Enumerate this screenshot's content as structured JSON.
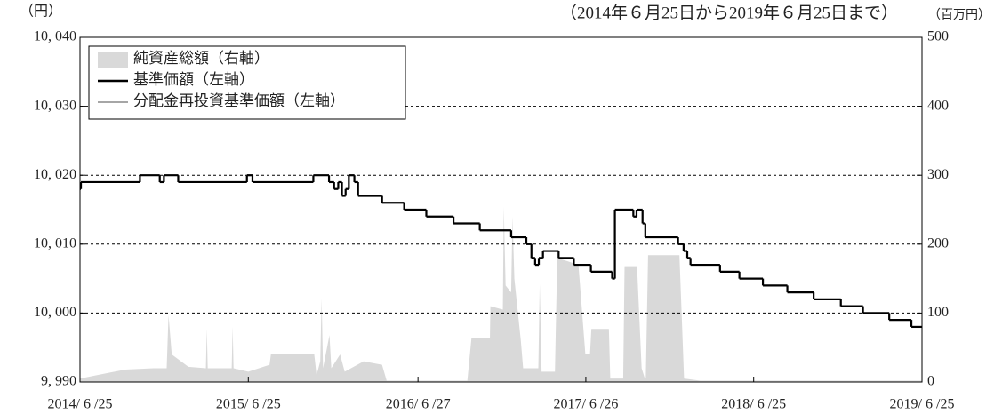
{
  "chart_data": {
    "type": "line",
    "y_label": "（円）",
    "subtitle": "（2014年６月25日から2019年６月25日まで）",
    "y2_label": "（百万円）",
    "xlim": [
      "2014/06/25",
      "2019/06/25"
    ],
    "xticks": [
      {
        "value": "2014/06/25",
        "label": "2014/ 6 /25"
      },
      {
        "value": "2015/06/25",
        "label": "2015/ 6 /25"
      },
      {
        "value": "2016/06/27",
        "label": "2016/ 6 /27"
      },
      {
        "value": "2017/06/26",
        "label": "2017/ 6 /26"
      },
      {
        "value": "2018/06/25",
        "label": "2018/ 6 /25"
      },
      {
        "value": "2019/06/25",
        "label": "2019/ 6 /25"
      }
    ],
    "ylim": [
      9990,
      10040
    ],
    "yticks": [
      {
        "value": 9990,
        "label": "9, 990"
      },
      {
        "value": 10000,
        "label": "10, 000"
      },
      {
        "value": 10010,
        "label": "10, 010"
      },
      {
        "value": 10020,
        "label": "10, 020"
      },
      {
        "value": 10030,
        "label": "10, 030"
      },
      {
        "value": 10040,
        "label": "10, 040"
      }
    ],
    "y2lim": [
      0,
      500
    ],
    "y2ticks": [
      0,
      100,
      200,
      300,
      400,
      500
    ],
    "grid": true,
    "legend": "upper left",
    "series": [
      {
        "name": "純資産総額（右軸）",
        "kind": "area",
        "axis": "y2",
        "color": "#d9d9d9",
        "x": [
          "2014/06/25",
          "2014/08/01",
          "2014/10/01",
          "2014/12/01",
          "2014/12/30",
          "2015/01/03",
          "2015/01/10",
          "2015/02/15",
          "2015/03/25",
          "2015/03/27",
          "2015/03/29",
          "2015/05/20",
          "2015/05/22",
          "2015/05/24",
          "2015/06/25",
          "2015/08/10",
          "2015/08/13",
          "2015/11/15",
          "2015/11/20",
          "2015/11/28",
          "2015/12/01",
          "2015/12/04",
          "2015/12/18",
          "2015/12/22",
          "2016/01/10",
          "2016/01/20",
          "2016/03/01",
          "2016/04/10",
          "2016/04/20",
          "2016/10/12",
          "2016/10/21",
          "2016/11/30",
          "2016/12/01",
          "2016/12/28",
          "2016/12/30",
          "2017/01/03",
          "2017/01/15",
          "2017/01/18",
          "2017/01/22",
          "2017/02/05",
          "2017/02/10",
          "2017/03/15",
          "2017/03/18",
          "2017/03/22",
          "2017/04/20",
          "2017/04/25",
          "2017/06/10",
          "2017/06/25",
          "2017/07/05",
          "2017/07/08",
          "2017/08/15",
          "2017/08/18",
          "2017/09/15",
          "2017/09/18",
          "2017/10/15",
          "2017/10/25",
          "2017/11/01",
          "2017/11/03",
          "2017/11/08",
          "2018/01/15",
          "2018/01/25",
          "2018/03/01",
          "2019/06/25"
        ],
        "values": [
          5,
          10,
          18,
          20,
          20,
          97,
          40,
          22,
          20,
          77,
          20,
          20,
          80,
          20,
          15,
          25,
          40,
          40,
          10,
          30,
          121,
          20,
          68,
          20,
          40,
          15,
          30,
          25,
          2,
          2,
          64,
          64,
          110,
          105,
          254,
          140,
          130,
          240,
          150,
          60,
          20,
          20,
          142,
          15,
          15,
          180,
          170,
          40,
          40,
          77,
          77,
          5,
          5,
          168,
          168,
          20,
          5,
          5,
          184,
          184,
          5,
          2,
          2
        ]
      },
      {
        "name": "基準価額（左軸）",
        "kind": "step",
        "color": "#000000",
        "x": [
          "2014/06/25",
          "2014/06/27",
          "2014/11/02",
          "2014/12/15",
          "2014/12/24",
          "2015/01/24",
          "2015/06/22",
          "2015/07/04",
          "2015/11/13",
          "2015/12/17",
          "2015/12/28",
          "2016/01/06",
          "2016/01/14",
          "2016/01/22",
          "2016/01/29",
          "2016/02/10",
          "2016/02/18",
          "2016/04/10",
          "2016/05/28",
          "2016/07/15",
          "2016/09/12",
          "2016/11/08",
          "2017/01/15",
          "2017/02/17",
          "2017/02/28",
          "2017/03/08",
          "2017/03/16",
          "2017/03/25",
          "2017/04/28",
          "2017/05/31",
          "2017/07/07",
          "2017/08/22",
          "2017/08/28",
          "2017/10/07",
          "2017/10/14",
          "2017/10/27",
          "2017/11/02",
          "2018/01/12",
          "2018/01/24",
          "2018/02/01",
          "2018/02/08",
          "2018/04/13",
          "2018/05/25",
          "2018/07/15",
          "2018/09/06",
          "2018/11/02",
          "2018/12/31",
          "2019/02/17",
          "2019/04/15",
          "2019/06/02"
        ],
        "values": [
          10018,
          10019,
          10020,
          10019,
          10020,
          10019,
          10020,
          10019,
          10020,
          10019,
          10018,
          10019,
          10017,
          10018,
          10020,
          10019,
          10017,
          10016,
          10015,
          10014,
          10013,
          10012,
          10011,
          10010,
          10008,
          10007,
          10008,
          10009,
          10008,
          10007,
          10006,
          10005,
          10015,
          10014,
          10015,
          10013,
          10011,
          10010,
          10009,
          10008,
          10007,
          10006,
          10005,
          10004,
          10003,
          10002,
          10001,
          10000,
          9999,
          9998
        ]
      },
      {
        "name": "分配金再投資基準価額（左軸）",
        "kind": "step",
        "color": "#a6a6a6",
        "x": [
          "2014/06/25",
          "2014/06/27",
          "2014/11/02",
          "2014/12/15",
          "2014/12/24",
          "2015/01/24",
          "2015/06/22",
          "2015/07/04",
          "2015/11/13",
          "2015/12/17",
          "2015/12/28",
          "2016/01/06",
          "2016/01/14",
          "2016/01/22",
          "2016/01/29",
          "2016/02/10",
          "2016/02/18",
          "2016/04/10",
          "2016/05/28",
          "2016/07/15",
          "2016/09/12",
          "2016/11/08",
          "2017/01/15",
          "2017/02/17",
          "2017/02/28",
          "2017/03/08",
          "2017/03/16",
          "2017/03/25",
          "2017/04/28",
          "2017/05/31",
          "2017/07/07",
          "2017/08/22",
          "2017/08/28",
          "2017/10/07",
          "2017/10/14",
          "2017/10/27",
          "2017/11/02",
          "2018/01/12",
          "2018/01/24",
          "2018/02/01",
          "2018/02/08",
          "2018/04/13",
          "2018/05/25",
          "2018/07/15",
          "2018/09/06",
          "2018/11/02",
          "2018/12/31",
          "2019/02/17",
          "2019/04/15",
          "2019/06/02"
        ],
        "values": [
          10018,
          10019,
          10020,
          10019,
          10020,
          10019,
          10020,
          10019,
          10020,
          10019,
          10018,
          10019,
          10017,
          10018,
          10020,
          10019,
          10017,
          10016,
          10015,
          10014,
          10013,
          10012,
          10011,
          10010,
          10008,
          10007,
          10008,
          10009,
          10008,
          10007,
          10006,
          10005,
          10015,
          10014,
          10015,
          10013,
          10011,
          10010,
          10009,
          10008,
          10007,
          10006,
          10005,
          10004,
          10003,
          10002,
          10001,
          10000,
          9999,
          9998
        ]
      }
    ]
  }
}
